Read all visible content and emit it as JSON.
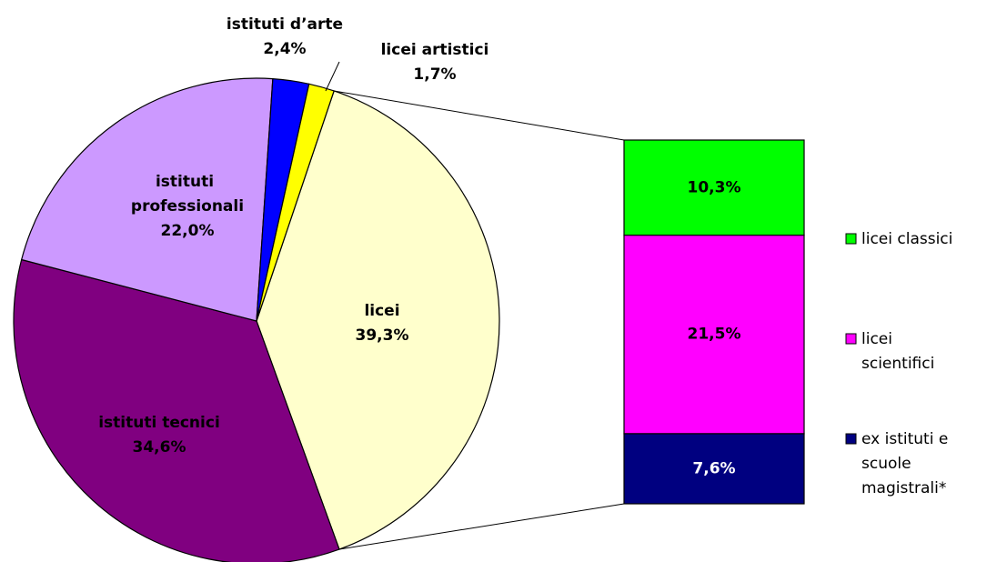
{
  "chart_data": [
    {
      "type": "pie",
      "categories": [
        "licei",
        "istituti tecnici",
        "istituti professionali",
        "istituti d’arte",
        "licei artistici"
      ],
      "values": [
        39.3,
        34.6,
        22.0,
        2.4,
        1.7
      ],
      "value_labels": [
        "39,3%",
        "34,6%",
        "22,0%",
        "2,4%",
        "1,7%"
      ],
      "colors": [
        "#ffffcc",
        "#800080",
        "#cc99ff",
        "#0000ff",
        "#ffff00"
      ]
    },
    {
      "type": "bar",
      "stacked": true,
      "series": [
        {
          "name": "licei classici",
          "color": "#00ff00",
          "values": [
            10.3
          ],
          "value_labels": [
            "10,3%"
          ]
        },
        {
          "name": "licei scientifici",
          "color": "#ff00ff",
          "values": [
            21.5
          ],
          "value_labels": [
            "21,5%"
          ]
        },
        {
          "name": "ex istituti e scuole magistrali*",
          "color": "#000080",
          "values": [
            7.6
          ],
          "value_labels": [
            "7,6%"
          ]
        }
      ]
    }
  ]
}
